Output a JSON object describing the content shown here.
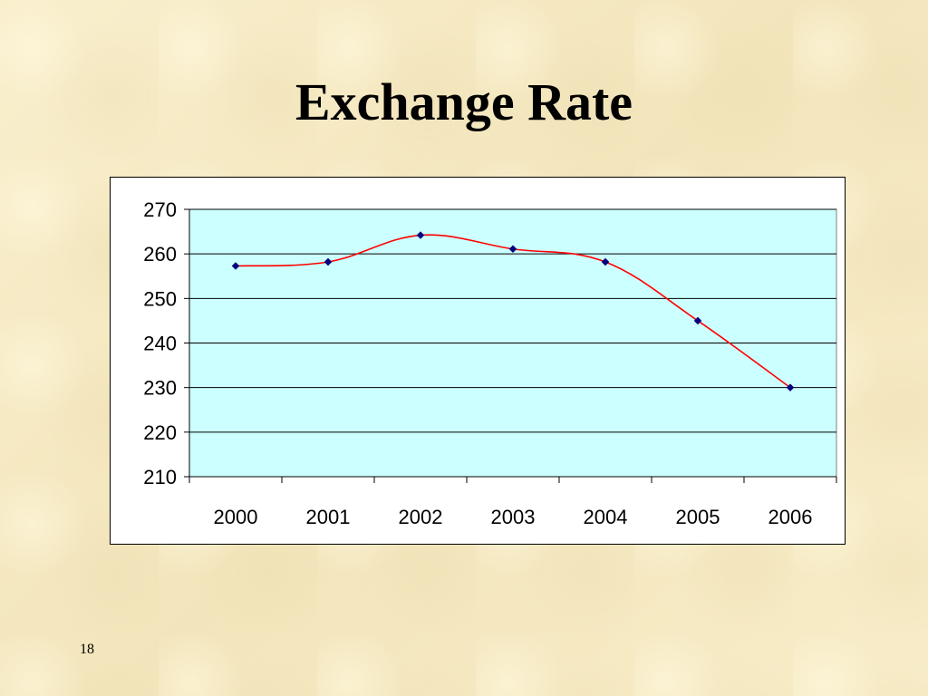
{
  "slide": {
    "title": "Exchange Rate",
    "page_number": "18"
  },
  "colors": {
    "plot_background": "#ccffff",
    "line": "#ff0000",
    "marker": "#000080",
    "gridline": "#000000"
  },
  "chart_data": {
    "type": "line",
    "categories": [
      "2000",
      "2001",
      "2002",
      "2003",
      "2004",
      "2005",
      "2006"
    ],
    "series": [
      {
        "values": [
          257.3,
          258.2,
          264.2,
          261.1,
          258.2,
          245,
          230
        ]
      }
    ],
    "ylim": [
      210,
      270
    ],
    "yticks": [
      210,
      220,
      230,
      240,
      250,
      260,
      270
    ],
    "grid": true,
    "smooth": true,
    "marker": "diamond",
    "legend": "none"
  }
}
